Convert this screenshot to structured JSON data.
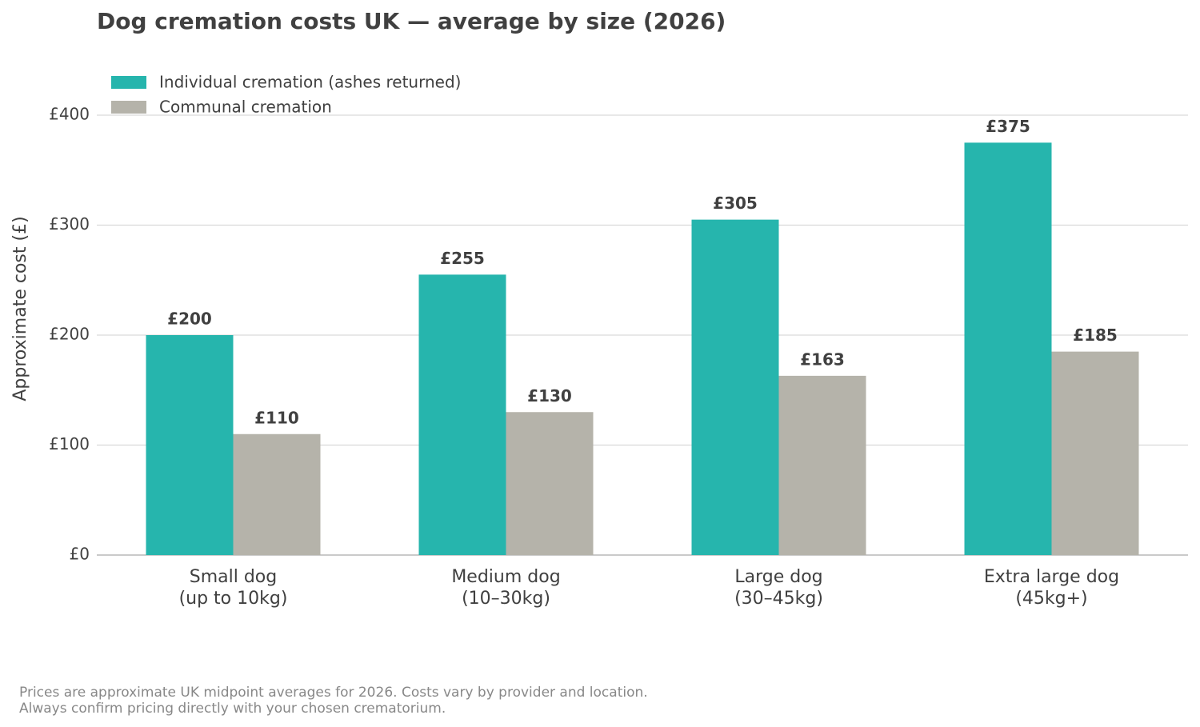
{
  "chart_data": {
    "type": "bar",
    "title": "Dog cremation costs UK — average by size (2026)",
    "y_label": "Approximate cost (£)",
    "categories": [
      "Small dog\n(up to 10kg)",
      "Medium dog\n(10–30kg)",
      "Large dog\n(30–45kg)",
      "Extra large dog\n(45kg+)"
    ],
    "series": [
      {
        "name": "Individual cremation (ashes returned)",
        "color": "#26b5ad",
        "values": [
          200,
          255,
          305,
          375
        ],
        "value_labels": [
          "£200",
          "£255",
          "£305",
          "£375"
        ]
      },
      {
        "name": "Communal cremation",
        "color": "#b5b3aa",
        "values": [
          110,
          130,
          163,
          185
        ],
        "value_labels": [
          "£110",
          "£130",
          "£163",
          "£185"
        ]
      }
    ],
    "ylim": [
      0,
      400
    ],
    "yticks": [
      {
        "value": 0,
        "label": "£0"
      },
      {
        "value": 100,
        "label": "£100"
      },
      {
        "value": 200,
        "label": "£200"
      },
      {
        "value": 300,
        "label": "£300"
      },
      {
        "value": 400,
        "label": "£400"
      }
    ],
    "grid": true,
    "legend": "upper left",
    "footnote": "Prices are approximate UK midpoint averages for 2026. Costs vary by provider and location.\nAlways confirm pricing directly with your chosen crematorium."
  }
}
